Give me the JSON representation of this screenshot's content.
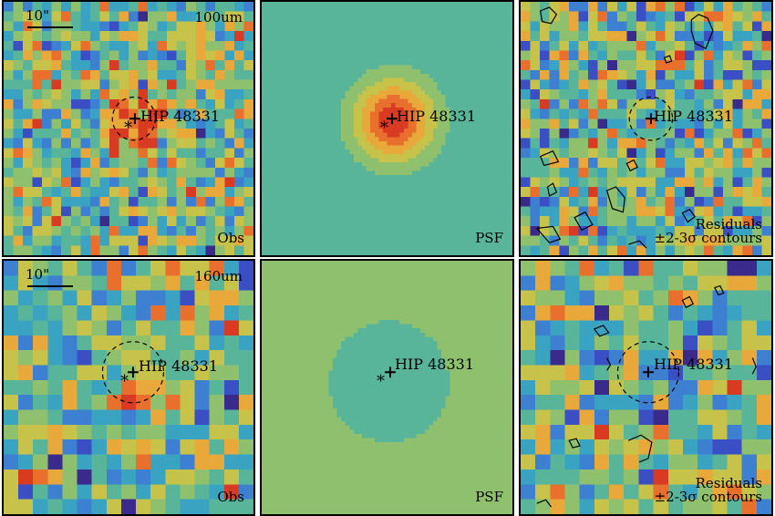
{
  "target": "HIP 48331",
  "rows": [
    {
      "band": "100um",
      "obs_label": "Obs",
      "psf_label": "PSF",
      "residual_label": "Residuals",
      "contour_label": "±2-3σ contours",
      "scale_label": "10\""
    },
    {
      "band": "160um",
      "obs_label": "Obs",
      "psf_label": "PSF",
      "residual_label": "Residuals",
      "contour_label": "±2-3σ contours",
      "scale_label": "10\""
    }
  ],
  "colormap": [
    "#3a2a8c",
    "#3b4fc4",
    "#3d7fd0",
    "#3aa3c2",
    "#58b59a",
    "#8fc06e",
    "#c7c24a",
    "#e8a83a",
    "#e9702c",
    "#d83a22"
  ],
  "marker_symbols": {
    "star": "*",
    "cross": "+"
  }
}
